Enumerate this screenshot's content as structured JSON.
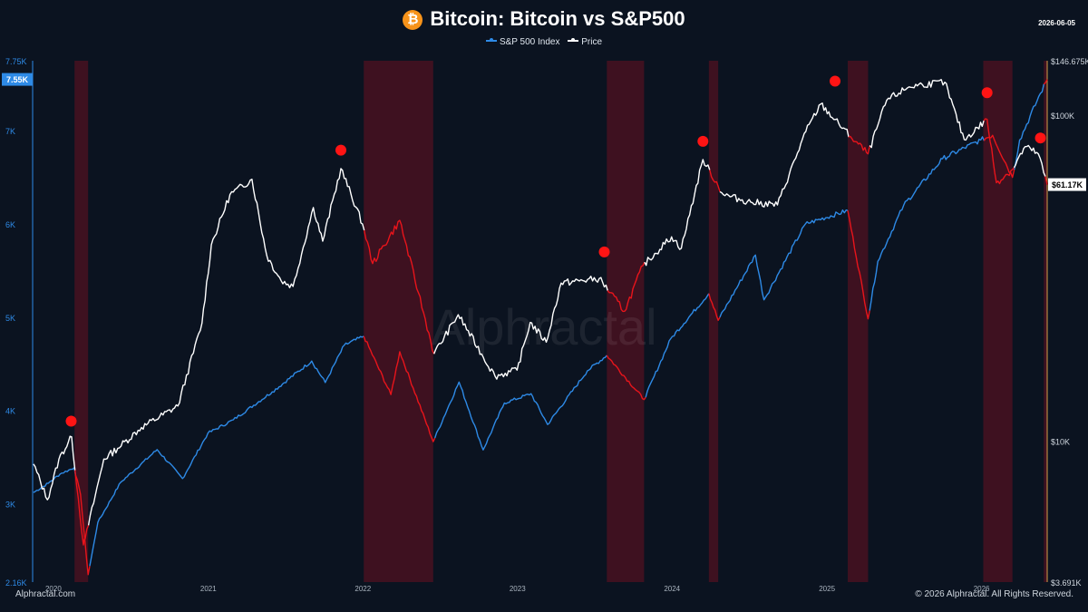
{
  "header": {
    "title": "Bitcoin: Bitcoin vs S&P500",
    "date": "2026-06-05",
    "logo_glyph": "₿"
  },
  "legend": [
    {
      "label": "S&P 500 Index",
      "color": "#2e8ae6"
    },
    {
      "label": "Price",
      "color": "#ffffff"
    }
  ],
  "footer": {
    "brand": "Alphractal.com",
    "copyright": "© 2026 Alphractal. All Rights Reserved.",
    "watermark": "Alphractal"
  },
  "chart_data": {
    "type": "line",
    "title": "Bitcoin: Bitcoin vs S&P500",
    "x_range": [
      "2019-11-13",
      "2026-06-05"
    ],
    "x_tick_labels": [
      "2020",
      "2021",
      "2022",
      "2023",
      "2024",
      "2025",
      "2026"
    ],
    "left_axis": {
      "series": "S&P 500 Index",
      "scale": "linear",
      "range": [
        2160,
        7750
      ],
      "tick_labels": [
        "2.16K",
        "3K",
        "4K",
        "5K",
        "6K",
        "7K",
        "7.75K"
      ],
      "current_label": "7.55K",
      "color": "#2e8ae6"
    },
    "right_axis": {
      "series": "Price",
      "scale": "log",
      "range": [
        3691,
        146675
      ],
      "tick_labels": [
        "$3.691K",
        "$10K",
        "$100K",
        "$146.675K"
      ],
      "current_label": "$61.17K",
      "color": "#ffffff"
    },
    "series": [
      {
        "name": "S&P 500 Index",
        "axis": "left",
        "color": "#2e8ae6",
        "drawdown_color": "#e8141b",
        "points": [
          [
            "2019-11-15",
            3120
          ],
          [
            "2019-12-20",
            3220
          ],
          [
            "2020-01-17",
            3320
          ],
          [
            "2020-02-19",
            3386
          ],
          [
            "2020-03-05",
            3100
          ],
          [
            "2020-03-23",
            2240
          ],
          [
            "2020-04-15",
            2800
          ],
          [
            "2020-06-08",
            3230
          ],
          [
            "2020-09-02",
            3580
          ],
          [
            "2020-11-01",
            3270
          ],
          [
            "2020-12-31",
            3756
          ],
          [
            "2021-03-01",
            3900
          ],
          [
            "2021-06-01",
            4200
          ],
          [
            "2021-09-02",
            4530
          ],
          [
            "2021-10-04",
            4300
          ],
          [
            "2021-11-18",
            4700
          ],
          [
            "2022-01-03",
            4796
          ],
          [
            "2022-03-08",
            4170
          ],
          [
            "2022-03-29",
            4630
          ],
          [
            "2022-06-16",
            3666
          ],
          [
            "2022-08-16",
            4305
          ],
          [
            "2022-10-12",
            3577
          ],
          [
            "2022-12-01",
            4080
          ],
          [
            "2023-02-02",
            4180
          ],
          [
            "2023-03-13",
            3850
          ],
          [
            "2023-06-15",
            4425
          ],
          [
            "2023-07-31",
            4590
          ],
          [
            "2023-10-27",
            4117
          ],
          [
            "2023-12-29",
            4770
          ],
          [
            "2024-03-28",
            5254
          ],
          [
            "2024-04-19",
            4967
          ],
          [
            "2024-07-16",
            5667
          ],
          [
            "2024-08-05",
            5186
          ],
          [
            "2024-11-11",
            6000
          ],
          [
            "2025-02-19",
            6144
          ],
          [
            "2025-04-08",
            4982
          ],
          [
            "2025-05-01",
            5600
          ],
          [
            "2025-07-01",
            6200
          ],
          [
            "2025-10-01",
            6700
          ],
          [
            "2025-12-30",
            6900
          ],
          [
            "2026-01-27",
            6950
          ],
          [
            "2026-03-15",
            6500
          ],
          [
            "2026-04-01",
            6900
          ],
          [
            "2026-05-20",
            7400
          ],
          [
            "2026-06-05",
            7550
          ]
        ]
      },
      {
        "name": "Price",
        "axis": "right",
        "color": "#ffffff",
        "drawdown_color": "#e8141b",
        "points": [
          [
            "2019-11-15",
            8500
          ],
          [
            "2019-12-18",
            6600
          ],
          [
            "2020-01-14",
            8800
          ],
          [
            "2020-02-13",
            10300
          ],
          [
            "2020-03-12",
            4800
          ],
          [
            "2020-03-16",
            5000
          ],
          [
            "2020-04-29",
            8800
          ],
          [
            "2020-06-01",
            9500
          ],
          [
            "2020-07-27",
            11000
          ],
          [
            "2020-10-21",
            12800
          ],
          [
            "2020-12-17",
            23000
          ],
          [
            "2021-01-08",
            40000
          ],
          [
            "2021-02-21",
            57000
          ],
          [
            "2021-04-14",
            63500
          ],
          [
            "2021-05-19",
            37000
          ],
          [
            "2021-06-22",
            31000
          ],
          [
            "2021-07-20",
            29800
          ],
          [
            "2021-09-06",
            52000
          ],
          [
            "2021-09-28",
            41000
          ],
          [
            "2021-11-10",
            68500
          ],
          [
            "2021-12-31",
            46300
          ],
          [
            "2022-01-24",
            35000
          ],
          [
            "2022-03-29",
            47500
          ],
          [
            "2022-05-12",
            28500
          ],
          [
            "2022-06-18",
            18500
          ],
          [
            "2022-08-14",
            24400
          ],
          [
            "2022-11-09",
            15800
          ],
          [
            "2022-12-31",
            16500
          ],
          [
            "2023-01-31",
            23100
          ],
          [
            "2023-03-10",
            20100
          ],
          [
            "2023-04-14",
            30500
          ],
          [
            "2023-07-13",
            31500
          ],
          [
            "2023-09-11",
            25000
          ],
          [
            "2023-10-24",
            34500
          ],
          [
            "2023-12-31",
            42300
          ],
          [
            "2024-01-23",
            39000
          ],
          [
            "2024-03-14",
            73000
          ],
          [
            "2024-05-01",
            57000
          ],
          [
            "2024-07-05",
            54000
          ],
          [
            "2024-09-06",
            53000
          ],
          [
            "2024-11-12",
            89000
          ],
          [
            "2024-12-17",
            108000
          ],
          [
            "2025-02-25",
            86000
          ],
          [
            "2025-04-08",
            76000
          ],
          [
            "2025-05-22",
            111000
          ],
          [
            "2025-07-14",
            122000
          ],
          [
            "2025-08-14",
            124000
          ],
          [
            "2025-10-06",
            126000
          ],
          [
            "2025-11-21",
            84000
          ],
          [
            "2026-01-14",
            97000
          ],
          [
            "2026-02-05",
            62000
          ],
          [
            "2026-03-15",
            68000
          ],
          [
            "2026-04-14",
            80000
          ],
          [
            "2026-05-15",
            76000
          ],
          [
            "2026-06-05",
            61170
          ]
        ]
      }
    ],
    "drawdown_periods": [
      [
        "2020-02-20",
        "2020-03-23"
      ],
      [
        "2022-01-03",
        "2022-06-16"
      ],
      [
        "2023-07-31",
        "2023-10-27"
      ],
      [
        "2024-03-28",
        "2024-04-19"
      ],
      [
        "2025-02-19",
        "2025-04-08"
      ],
      [
        "2026-01-05",
        "2026-03-15"
      ],
      [
        "2026-05-28",
        "2026-06-05"
      ]
    ],
    "peak_markers": [
      {
        "date": "2020-02-12",
        "price": 11500
      },
      {
        "date": "2021-11-10",
        "price": 78000
      },
      {
        "date": "2023-07-25",
        "price": 38000
      },
      {
        "date": "2024-03-14",
        "price": 83000
      },
      {
        "date": "2025-01-20",
        "price": 127000
      },
      {
        "date": "2026-01-14",
        "price": 117000
      },
      {
        "date": "2026-05-20",
        "price": 85000
      }
    ]
  }
}
